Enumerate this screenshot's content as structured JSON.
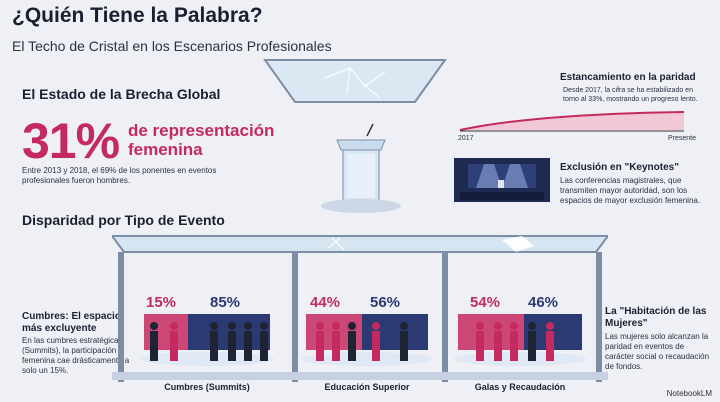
{
  "header": {
    "title": "¿Quién Tiene la Palabra?",
    "subtitle": "El Techo de Cristal en los Escenarios Profesionales"
  },
  "global_gap": {
    "heading": "El Estado de la Brecha Global",
    "big_value": "31%",
    "big_label": "de representación femenina",
    "note": "Entre 2013 y 2018, el 69% de los ponentes en eventos profesionales fueron hombres."
  },
  "stagnation": {
    "heading": "Estancamiento en la paridad",
    "text": "Desde 2017, la cifra se ha estabilizado en torno al 33%, mostrando un progreso lento.",
    "start_label": "2017",
    "end_label": "Presente"
  },
  "keynotes": {
    "heading": "Exclusión en \"Keynotes\"",
    "text": "Las conferencias magistrales, que transmiten mayor autoridad, son los espacios de mayor exclusión femenina."
  },
  "events": {
    "heading": "Disparidad por Tipo de Evento",
    "stages": [
      {
        "women_pct": "15%",
        "men_pct": "85%",
        "women": 15,
        "label": "Cumbres (Summits)"
      },
      {
        "women_pct": "44%",
        "men_pct": "56%",
        "women": 44,
        "label": "Educación Superior"
      },
      {
        "women_pct": "54%",
        "men_pct": "46%",
        "women": 54,
        "label": "Galas y Recaudación"
      }
    ]
  },
  "summits_note": {
    "heading": "Cumbres: El espacio más excluyente",
    "text": "En las cumbres estratégicas (Summits), la participación femenina cae drásticamente a solo un 15%."
  },
  "room_note": {
    "heading": "La \"Habitación de las Mujeres\"",
    "text": "Las mujeres solo alcanzan la paridad en eventos de carácter social o recaudación de fondos."
  },
  "branding": {
    "name": "NotebookLM"
  },
  "colors": {
    "women": "#c42a5f",
    "men": "#2b3a73",
    "glass": "#cfe0f0",
    "frame": "#7d8da6"
  }
}
